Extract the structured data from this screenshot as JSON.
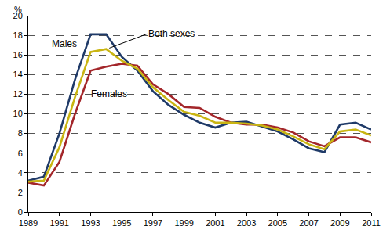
{
  "chart_data": {
    "type": "line",
    "y_label": "%",
    "x": [
      1989,
      1990,
      1991,
      1992,
      1993,
      1994,
      1995,
      1996,
      1997,
      1998,
      1999,
      2000,
      2001,
      2002,
      2003,
      2004,
      2005,
      2006,
      2007,
      2008,
      2009,
      2010,
      2011
    ],
    "series": [
      {
        "name": "Males",
        "color": "#1f3a68",
        "values": [
          3.2,
          3.6,
          8.0,
          13.5,
          18.1,
          18.1,
          15.8,
          14.4,
          12.3,
          10.9,
          9.9,
          9.1,
          8.6,
          9.1,
          9.2,
          8.7,
          8.2,
          7.4,
          6.5,
          6.1,
          8.9,
          9.1,
          8.4
        ]
      },
      {
        "name": "Females",
        "color": "#a3262a",
        "values": [
          3.0,
          2.7,
          5.1,
          10.0,
          14.4,
          14.8,
          15.1,
          14.9,
          13.0,
          12.0,
          10.7,
          10.6,
          9.7,
          9.1,
          8.9,
          8.9,
          8.6,
          8.1,
          7.2,
          6.7,
          7.6,
          7.6,
          7.1
        ]
      },
      {
        "name": "Both sexes",
        "color": "#c9b512",
        "values": [
          3.1,
          3.2,
          6.6,
          11.7,
          16.3,
          16.6,
          15.4,
          14.6,
          12.7,
          11.4,
          10.2,
          9.8,
          9.1,
          9.1,
          9.0,
          8.8,
          8.4,
          7.7,
          6.9,
          6.4,
          8.2,
          8.4,
          7.8
        ]
      }
    ],
    "annotations": [
      {
        "text": "Males",
        "x": 1991.3,
        "y": 17.1
      },
      {
        "text": "Both sexes",
        "x": 1994.2,
        "y": 16.7,
        "arrow": true
      },
      {
        "text": "Females",
        "x": 1994.2,
        "y": 12.0
      }
    ],
    "xlim": [
      1989,
      2011
    ],
    "xticks": [
      1989,
      1991,
      1993,
      1995,
      1997,
      1999,
      2001,
      2003,
      2005,
      2007,
      2009,
      2011
    ],
    "ylim": [
      0,
      20
    ],
    "yticks": [
      0,
      2,
      4,
      6,
      8,
      10,
      12,
      14,
      16,
      18,
      20
    ],
    "grid": true
  }
}
